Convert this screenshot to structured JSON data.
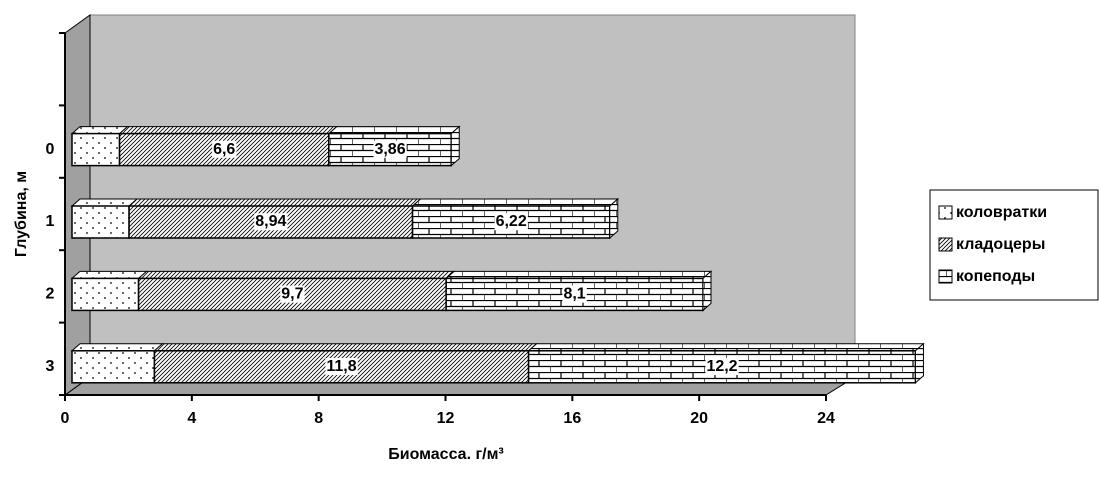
{
  "chart_data": {
    "type": "bar3d_stacked_horizontal",
    "categories": [
      "0",
      "1",
      "2",
      "3"
    ],
    "series": [
      {
        "name": "коловратки",
        "color": "#ffffff",
        "pattern": "dots",
        "values": [
          1.5,
          1.8,
          2.1,
          2.6
        ]
      },
      {
        "name": "кладоцеры",
        "color": "#ffffff",
        "pattern": "diagonal",
        "values": [
          6.6,
          8.94,
          9.7,
          11.8
        ],
        "value_labels": [
          "6,6",
          "8,94",
          "9,7",
          "11,8"
        ]
      },
      {
        "name": "копеподы",
        "color": "#ffffff",
        "pattern": "brick",
        "values": [
          3.86,
          6.22,
          8.1,
          12.2
        ],
        "value_labels": [
          "3,86",
          "6,22",
          "8,1",
          "12,2"
        ]
      }
    ],
    "x_label": "Биомасса. г/м³",
    "y_label": "Глубина, м",
    "xlim": [
      0,
      24
    ],
    "xticks": [
      0,
      4,
      8,
      12,
      16,
      20,
      24
    ],
    "wall_color": "#c0c0c0"
  }
}
